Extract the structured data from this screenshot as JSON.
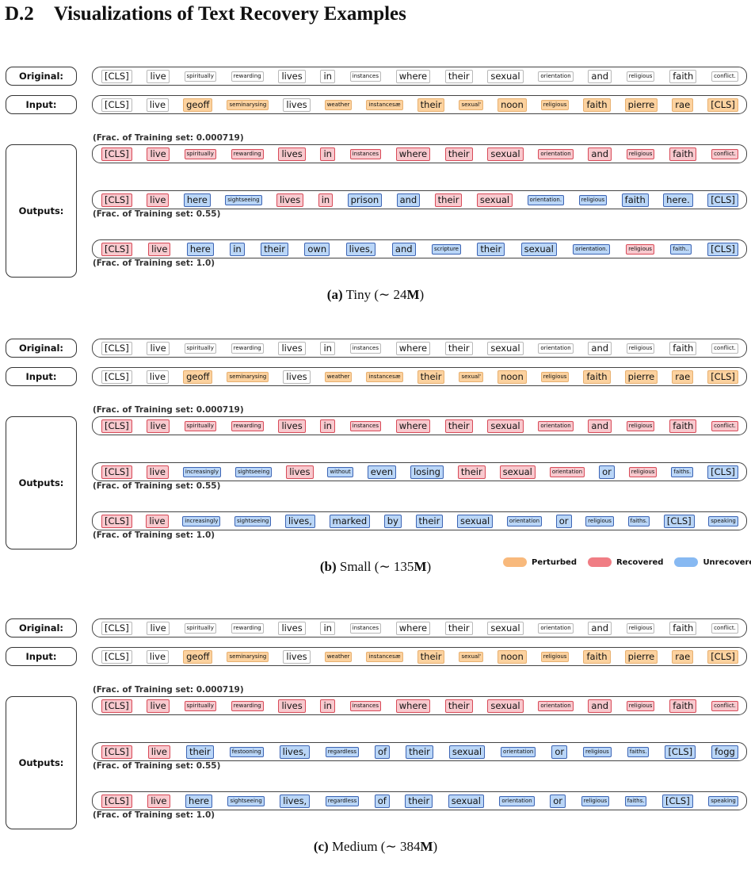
{
  "heading": {
    "number": "D.2",
    "title": "Visualizations of Text Recovery Examples"
  },
  "row_labels": {
    "original": "Original:",
    "input": "Input:",
    "outputs": "Outputs:"
  },
  "original_tokens": [
    {
      "t": "[CLS]",
      "s": "l"
    },
    {
      "t": "live",
      "s": "l"
    },
    {
      "t": "spiritually",
      "s": "s"
    },
    {
      "t": "rewarding",
      "s": "s"
    },
    {
      "t": "lives",
      "s": "l"
    },
    {
      "t": "in",
      "s": "l"
    },
    {
      "t": "instances",
      "s": "s"
    },
    {
      "t": "where",
      "s": "l"
    },
    {
      "t": "their",
      "s": "l"
    },
    {
      "t": "sexual",
      "s": "l"
    },
    {
      "t": "orientation",
      "s": "s"
    },
    {
      "t": "and",
      "s": "l"
    },
    {
      "t": "religious",
      "s": "s"
    },
    {
      "t": "faith",
      "s": "l"
    },
    {
      "t": "conflict.",
      "s": "s"
    }
  ],
  "input_tokens": [
    {
      "t": "[CLS]",
      "s": "l",
      "c": "plain"
    },
    {
      "t": "live",
      "s": "l",
      "c": "plain"
    },
    {
      "t": "geoff",
      "s": "l",
      "c": "pert"
    },
    {
      "t": "seminarysing",
      "s": "s",
      "c": "pert"
    },
    {
      "t": "lives",
      "s": "l",
      "c": "plain"
    },
    {
      "t": "weather",
      "s": "s",
      "c": "pert"
    },
    {
      "t": "instancesæ",
      "s": "s",
      "c": "pert"
    },
    {
      "t": "their",
      "s": "l",
      "c": "pert"
    },
    {
      "t": "sexual'",
      "s": "s",
      "c": "pert"
    },
    {
      "t": "noon",
      "s": "l",
      "c": "pert"
    },
    {
      "t": "religious",
      "s": "s",
      "c": "pert"
    },
    {
      "t": "faith",
      "s": "l",
      "c": "pert"
    },
    {
      "t": "pierre",
      "s": "l",
      "c": "pert"
    },
    {
      "t": "rae",
      "s": "l",
      "c": "pert"
    },
    {
      "t": "[CLS]",
      "s": "l",
      "c": "pert"
    }
  ],
  "frac_labels": [
    "(Frac. of Training set: 0.000719)",
    "(Frac. of Training set: 0.55)",
    "(Frac. of Training set: 1.0)"
  ],
  "panels": [
    {
      "caption_letter": "(a)",
      "caption_name": "Tiny",
      "caption_prefix": "(∼ 24",
      "caption_unit": "M",
      "caption_suffix": ")",
      "outputs": [
        [
          {
            "t": "[CLS]",
            "s": "l",
            "c": "rec"
          },
          {
            "t": "live",
            "s": "l",
            "c": "rec"
          },
          {
            "t": "spiritually",
            "s": "s",
            "c": "rec"
          },
          {
            "t": "rewarding",
            "s": "s",
            "c": "rec"
          },
          {
            "t": "lives",
            "s": "l",
            "c": "rec"
          },
          {
            "t": "in",
            "s": "l",
            "c": "rec"
          },
          {
            "t": "instances",
            "s": "s",
            "c": "rec"
          },
          {
            "t": "where",
            "s": "l",
            "c": "rec"
          },
          {
            "t": "their",
            "s": "l",
            "c": "rec"
          },
          {
            "t": "sexual",
            "s": "l",
            "c": "rec"
          },
          {
            "t": "orientation",
            "s": "s",
            "c": "rec"
          },
          {
            "t": "and",
            "s": "l",
            "c": "rec"
          },
          {
            "t": "religious",
            "s": "s",
            "c": "rec"
          },
          {
            "t": "faith",
            "s": "l",
            "c": "rec"
          },
          {
            "t": "conflict.",
            "s": "s",
            "c": "rec"
          }
        ],
        [
          {
            "t": "[CLS]",
            "s": "l",
            "c": "rec"
          },
          {
            "t": "live",
            "s": "l",
            "c": "rec"
          },
          {
            "t": "here",
            "s": "l",
            "c": "unr"
          },
          {
            "t": "sightseeing",
            "s": "s",
            "c": "unr"
          },
          {
            "t": "lives",
            "s": "l",
            "c": "rec"
          },
          {
            "t": "in",
            "s": "l",
            "c": "rec"
          },
          {
            "t": "prison",
            "s": "l",
            "c": "unr"
          },
          {
            "t": "and",
            "s": "l",
            "c": "unr"
          },
          {
            "t": "their",
            "s": "l",
            "c": "rec"
          },
          {
            "t": "sexual",
            "s": "l",
            "c": "rec"
          },
          {
            "t": "orientation.",
            "s": "s",
            "c": "unr"
          },
          {
            "t": "religious",
            "s": "s",
            "c": "unr"
          },
          {
            "t": "faith",
            "s": "l",
            "c": "unr"
          },
          {
            "t": "here.",
            "s": "l",
            "c": "unr"
          },
          {
            "t": "[CLS]",
            "s": "l",
            "c": "unr"
          }
        ],
        [
          {
            "t": "[CLS]",
            "s": "l",
            "c": "rec"
          },
          {
            "t": "live",
            "s": "l",
            "c": "rec"
          },
          {
            "t": "here",
            "s": "l",
            "c": "unr"
          },
          {
            "t": "in",
            "s": "l",
            "c": "unr"
          },
          {
            "t": "their",
            "s": "l",
            "c": "unr"
          },
          {
            "t": "own",
            "s": "l",
            "c": "unr"
          },
          {
            "t": "lives,",
            "s": "l",
            "c": "unr"
          },
          {
            "t": "and",
            "s": "l",
            "c": "unr"
          },
          {
            "t": "scripture",
            "s": "s",
            "c": "unr"
          },
          {
            "t": "their",
            "s": "l",
            "c": "unr"
          },
          {
            "t": "sexual",
            "s": "l",
            "c": "unr"
          },
          {
            "t": "orientation.",
            "s": "s",
            "c": "unr"
          },
          {
            "t": "religious",
            "s": "s",
            "c": "rec"
          },
          {
            "t": "faith..",
            "s": "s",
            "c": "unr"
          },
          {
            "t": "[CLS]",
            "s": "l",
            "c": "unr"
          }
        ]
      ]
    },
    {
      "caption_letter": "(b)",
      "caption_name": "Small",
      "caption_prefix": "(∼ 135",
      "caption_unit": "M",
      "caption_suffix": ")",
      "outputs": [
        [
          {
            "t": "[CLS]",
            "s": "l",
            "c": "rec"
          },
          {
            "t": "live",
            "s": "l",
            "c": "rec"
          },
          {
            "t": "spiritually",
            "s": "s",
            "c": "rec"
          },
          {
            "t": "rewarding",
            "s": "s",
            "c": "rec"
          },
          {
            "t": "lives",
            "s": "l",
            "c": "rec"
          },
          {
            "t": "in",
            "s": "l",
            "c": "rec"
          },
          {
            "t": "instances",
            "s": "s",
            "c": "rec"
          },
          {
            "t": "where",
            "s": "l",
            "c": "rec"
          },
          {
            "t": "their",
            "s": "l",
            "c": "rec"
          },
          {
            "t": "sexual",
            "s": "l",
            "c": "rec"
          },
          {
            "t": "orientation",
            "s": "s",
            "c": "rec"
          },
          {
            "t": "and",
            "s": "l",
            "c": "rec"
          },
          {
            "t": "religious",
            "s": "s",
            "c": "rec"
          },
          {
            "t": "faith",
            "s": "l",
            "c": "rec"
          },
          {
            "t": "conflict.",
            "s": "s",
            "c": "rec"
          }
        ],
        [
          {
            "t": "[CLS]",
            "s": "l",
            "c": "rec"
          },
          {
            "t": "live",
            "s": "l",
            "c": "rec"
          },
          {
            "t": "increasingly",
            "s": "s",
            "c": "unr"
          },
          {
            "t": "sightseeing",
            "s": "s",
            "c": "unr"
          },
          {
            "t": "lives",
            "s": "l",
            "c": "rec"
          },
          {
            "t": "without",
            "s": "s",
            "c": "unr"
          },
          {
            "t": "even",
            "s": "l",
            "c": "unr"
          },
          {
            "t": "losing",
            "s": "l",
            "c": "unr"
          },
          {
            "t": "their",
            "s": "l",
            "c": "rec"
          },
          {
            "t": "sexual",
            "s": "l",
            "c": "rec"
          },
          {
            "t": "orientation",
            "s": "s",
            "c": "rec"
          },
          {
            "t": "or",
            "s": "l",
            "c": "unr"
          },
          {
            "t": "religious",
            "s": "s",
            "c": "rec"
          },
          {
            "t": "faiths.",
            "s": "s",
            "c": "unr"
          },
          {
            "t": "[CLS]",
            "s": "l",
            "c": "unr"
          }
        ],
        [
          {
            "t": "[CLS]",
            "s": "l",
            "c": "rec"
          },
          {
            "t": "live",
            "s": "l",
            "c": "rec"
          },
          {
            "t": "increasingly",
            "s": "s",
            "c": "unr"
          },
          {
            "t": "sightseeing",
            "s": "s",
            "c": "unr"
          },
          {
            "t": "lives,",
            "s": "l",
            "c": "unr"
          },
          {
            "t": "marked",
            "s": "l",
            "c": "unr"
          },
          {
            "t": "by",
            "s": "l",
            "c": "unr"
          },
          {
            "t": "their",
            "s": "l",
            "c": "unr"
          },
          {
            "t": "sexual",
            "s": "l",
            "c": "unr"
          },
          {
            "t": "orientation",
            "s": "s",
            "c": "unr"
          },
          {
            "t": "or",
            "s": "l",
            "c": "unr"
          },
          {
            "t": "religious",
            "s": "s",
            "c": "unr"
          },
          {
            "t": "faiths.",
            "s": "s",
            "c": "unr"
          },
          {
            "t": "[CLS]",
            "s": "l",
            "c": "unr"
          },
          {
            "t": "speaking",
            "s": "s",
            "c": "unr"
          }
        ]
      ]
    },
    {
      "caption_letter": "(c)",
      "caption_name": "Medium",
      "caption_prefix": "(∼ 384",
      "caption_unit": "M",
      "caption_suffix": ")",
      "outputs": [
        [
          {
            "t": "[CLS]",
            "s": "l",
            "c": "rec"
          },
          {
            "t": "live",
            "s": "l",
            "c": "rec"
          },
          {
            "t": "spiritually",
            "s": "s",
            "c": "rec"
          },
          {
            "t": "rewarding",
            "s": "s",
            "c": "rec"
          },
          {
            "t": "lives",
            "s": "l",
            "c": "rec"
          },
          {
            "t": "in",
            "s": "l",
            "c": "rec"
          },
          {
            "t": "instances",
            "s": "s",
            "c": "rec"
          },
          {
            "t": "where",
            "s": "l",
            "c": "rec"
          },
          {
            "t": "their",
            "s": "l",
            "c": "rec"
          },
          {
            "t": "sexual",
            "s": "l",
            "c": "rec"
          },
          {
            "t": "orientation",
            "s": "s",
            "c": "rec"
          },
          {
            "t": "and",
            "s": "l",
            "c": "rec"
          },
          {
            "t": "religious",
            "s": "s",
            "c": "rec"
          },
          {
            "t": "faith",
            "s": "l",
            "c": "rec"
          },
          {
            "t": "conflict.",
            "s": "s",
            "c": "rec"
          }
        ],
        [
          {
            "t": "[CLS]",
            "s": "l",
            "c": "rec"
          },
          {
            "t": "live",
            "s": "l",
            "c": "rec"
          },
          {
            "t": "their",
            "s": "l",
            "c": "unr"
          },
          {
            "t": "festooning",
            "s": "s",
            "c": "unr"
          },
          {
            "t": "lives,",
            "s": "l",
            "c": "unr"
          },
          {
            "t": "regardless",
            "s": "s",
            "c": "unr"
          },
          {
            "t": "of",
            "s": "l",
            "c": "unr"
          },
          {
            "t": "their",
            "s": "l",
            "c": "unr"
          },
          {
            "t": "sexual",
            "s": "l",
            "c": "unr"
          },
          {
            "t": "orientation",
            "s": "s",
            "c": "unr"
          },
          {
            "t": "or",
            "s": "l",
            "c": "unr"
          },
          {
            "t": "religious",
            "s": "s",
            "c": "unr"
          },
          {
            "t": "faiths.",
            "s": "s",
            "c": "unr"
          },
          {
            "t": "[CLS]",
            "s": "l",
            "c": "unr"
          },
          {
            "t": "fogg",
            "s": "l",
            "c": "unr"
          }
        ],
        [
          {
            "t": "[CLS]",
            "s": "l",
            "c": "rec"
          },
          {
            "t": "live",
            "s": "l",
            "c": "rec"
          },
          {
            "t": "here",
            "s": "l",
            "c": "unr"
          },
          {
            "t": "sightseeing",
            "s": "s",
            "c": "unr"
          },
          {
            "t": "lives,",
            "s": "l",
            "c": "unr"
          },
          {
            "t": "regardless",
            "s": "s",
            "c": "unr"
          },
          {
            "t": "of",
            "s": "l",
            "c": "unr"
          },
          {
            "t": "their",
            "s": "l",
            "c": "unr"
          },
          {
            "t": "sexual",
            "s": "l",
            "c": "unr"
          },
          {
            "t": "orientation",
            "s": "s",
            "c": "unr"
          },
          {
            "t": "or",
            "s": "l",
            "c": "unr"
          },
          {
            "t": "religious",
            "s": "s",
            "c": "unr"
          },
          {
            "t": "faiths.",
            "s": "s",
            "c": "unr"
          },
          {
            "t": "[CLS]",
            "s": "l",
            "c": "unr"
          },
          {
            "t": "speaking",
            "s": "s",
            "c": "unr"
          }
        ]
      ]
    }
  ],
  "legend": [
    {
      "label": "Perturbed",
      "color": "#f8b97c"
    },
    {
      "label": "Recovered",
      "color": "#f07d84"
    },
    {
      "label": "Unrecovered",
      "color": "#87b9f2"
    }
  ],
  "colors": {
    "perturbed": "#fcd29f",
    "recovered": "#f8c9ce",
    "unrecovered": "#bad6f7"
  }
}
